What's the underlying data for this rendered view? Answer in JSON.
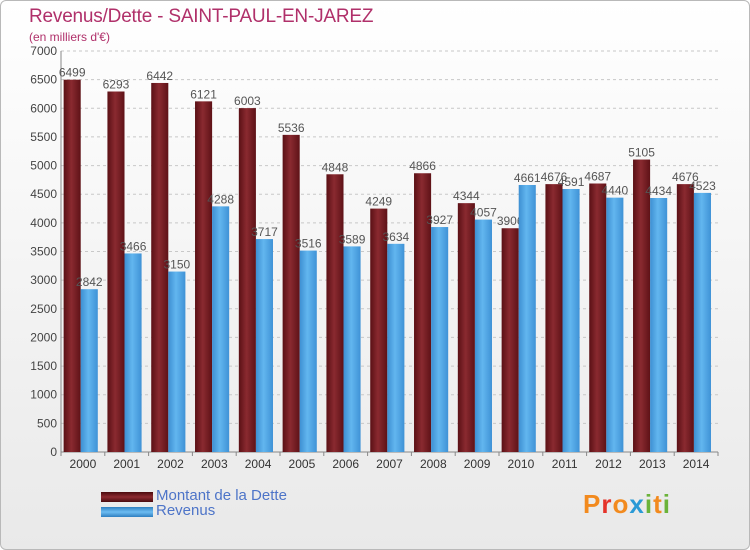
{
  "title": "Revenus/Dette - SAINT-PAUL-EN-JAREZ",
  "subtitle": "(en milliers d'€)",
  "logo": {
    "letters": [
      "P",
      "r",
      "o",
      "x",
      "i",
      "t",
      "i"
    ],
    "colors": [
      "#f28a1e",
      "#e5332a",
      "#f28a1e",
      "#2a9ad6",
      "#6bb33a",
      "#f28a1e",
      "#6bb33a"
    ]
  },
  "colors": {
    "debt": "#7a1c22",
    "revenue": "#4fa6e6",
    "label": "#555555",
    "title": "#b0306a"
  },
  "chart_data": {
    "type": "bar",
    "title": "Revenus/Dette - SAINT-PAUL-EN-JAREZ",
    "ylabel": "(en milliers d'€)",
    "ylim": [
      0,
      7000
    ],
    "yticks": [
      0,
      500,
      1000,
      1500,
      2000,
      2500,
      3000,
      3500,
      4000,
      4500,
      5000,
      5500,
      6000,
      6500,
      7000
    ],
    "grid": true,
    "legend": "bottom-left",
    "categories": [
      "2000",
      "2001",
      "2002",
      "2003",
      "2004",
      "2005",
      "2006",
      "2007",
      "2008",
      "2009",
      "2010",
      "2011",
      "2012",
      "2013",
      "2014"
    ],
    "series": [
      {
        "name": "Montant de la Dette",
        "values": [
          6499,
          6293,
          6442,
          6121,
          6003,
          5536,
          4848,
          4249,
          4866,
          4344,
          3906,
          4676,
          4687,
          5105,
          4676
        ]
      },
      {
        "name": "Revenus",
        "values": [
          2842,
          3466,
          3150,
          4288,
          3717,
          3516,
          3589,
          3634,
          3927,
          4057,
          4661,
          4591,
          4440,
          4434,
          4523
        ]
      }
    ]
  }
}
